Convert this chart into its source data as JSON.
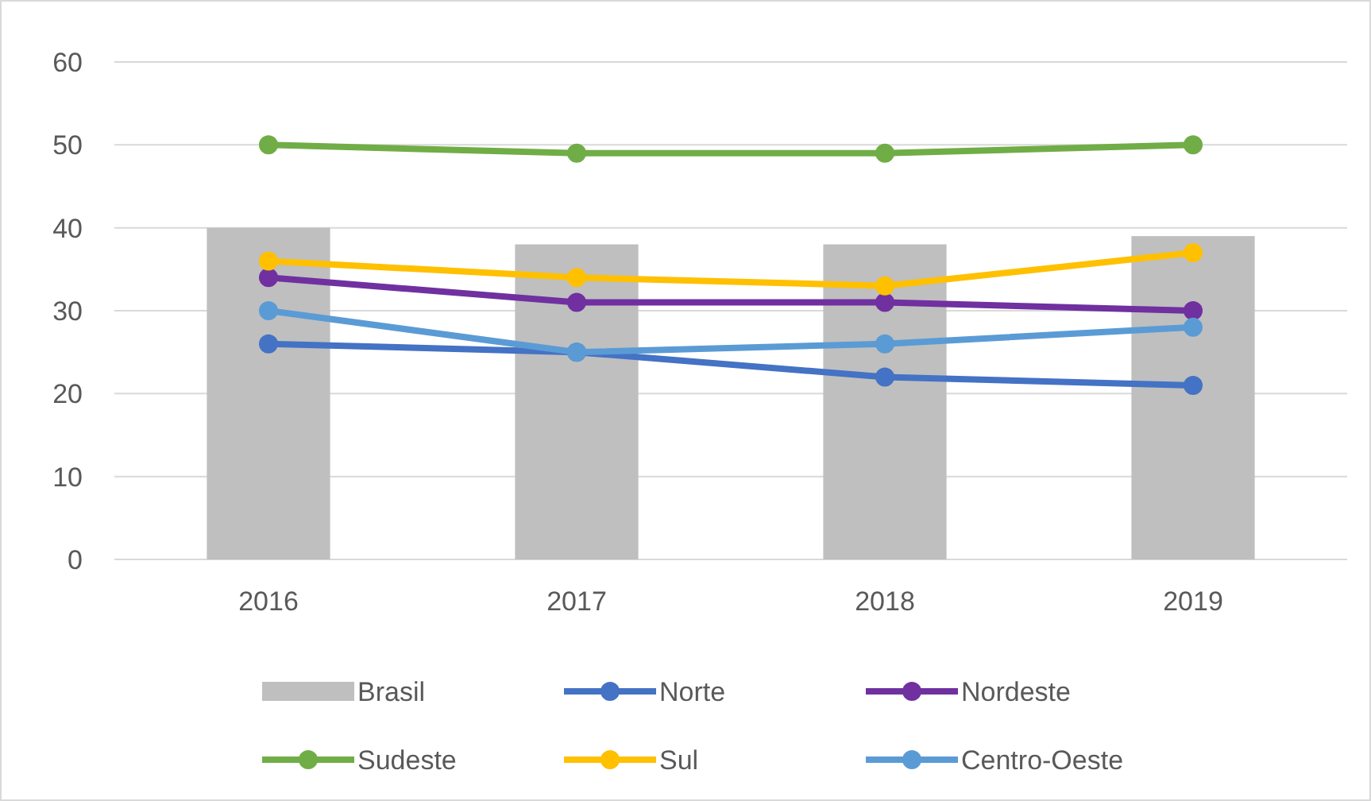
{
  "chart_data": {
    "type": "line",
    "categories": [
      "2016",
      "2017",
      "2018",
      "2019"
    ],
    "series": [
      {
        "name": "Brasil",
        "type": "bar",
        "color": "#bfbfbf",
        "values": [
          40,
          38,
          38,
          39
        ]
      },
      {
        "name": "Norte",
        "color": "#4472c4",
        "values": [
          26,
          25,
          22,
          21
        ]
      },
      {
        "name": "Nordeste",
        "color": "#7030a0",
        "values": [
          34,
          31,
          31,
          30
        ]
      },
      {
        "name": "Sudeste",
        "color": "#70ad47",
        "values": [
          50,
          49,
          49,
          50
        ]
      },
      {
        "name": "Sul",
        "color": "#ffc000",
        "values": [
          36,
          34,
          33,
          37
        ]
      },
      {
        "name": "Centro-Oeste",
        "color": "#5b9bd5",
        "values": [
          30,
          25,
          26,
          28
        ]
      }
    ],
    "ylim": [
      0,
      60
    ],
    "yticks": [
      0,
      10,
      20,
      30,
      40,
      50,
      60
    ],
    "grid": "y",
    "legend": "bottom",
    "marker": "circle"
  }
}
